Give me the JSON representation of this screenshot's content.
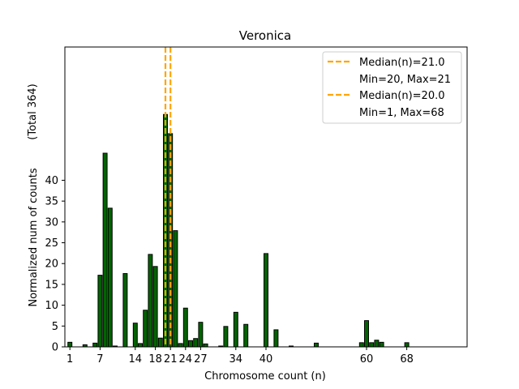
{
  "chart_data": {
    "type": "bar",
    "title": "Veronica",
    "xlabel": "Chromosome count (n)",
    "ylabel": "Normalized num of counts",
    "ylabel_total": "(Total 364)",
    "xlim": [
      0,
      80
    ],
    "ylim": [
      0,
      72
    ],
    "xticks": [
      1,
      7,
      14,
      18,
      21,
      24,
      27,
      34,
      40,
      60,
      68
    ],
    "yticks": [
      0,
      5,
      10,
      15,
      20,
      25,
      30,
      35,
      40
    ],
    "bar_color": "#006400",
    "bars": [
      {
        "x": 1,
        "y": 1.1
      },
      {
        "x": 4,
        "y": 0.5
      },
      {
        "x": 6,
        "y": 0.9
      },
      {
        "x": 7,
        "y": 17.2
      },
      {
        "x": 8,
        "y": 46.5
      },
      {
        "x": 9,
        "y": 33.3
      },
      {
        "x": 10,
        "y": 0.2
      },
      {
        "x": 12,
        "y": 17.6
      },
      {
        "x": 14,
        "y": 5.7
      },
      {
        "x": 15,
        "y": 0.8
      },
      {
        "x": 16,
        "y": 8.8
      },
      {
        "x": 17,
        "y": 22.2
      },
      {
        "x": 18,
        "y": 19.3
      },
      {
        "x": 19,
        "y": 2.1
      },
      {
        "x": 20,
        "y": 55.8
      },
      {
        "x": 21,
        "y": 51.2
      },
      {
        "x": 22,
        "y": 27.9
      },
      {
        "x": 23,
        "y": 0.8
      },
      {
        "x": 24,
        "y": 9.3
      },
      {
        "x": 25,
        "y": 1.5
      },
      {
        "x": 26,
        "y": 2.0
      },
      {
        "x": 27,
        "y": 5.9
      },
      {
        "x": 28,
        "y": 0.7
      },
      {
        "x": 31,
        "y": 0.2
      },
      {
        "x": 32,
        "y": 4.9
      },
      {
        "x": 34,
        "y": 8.3
      },
      {
        "x": 36,
        "y": 5.4
      },
      {
        "x": 40,
        "y": 22.4
      },
      {
        "x": 42,
        "y": 4.1
      },
      {
        "x": 45,
        "y": 0.2
      },
      {
        "x": 50,
        "y": 0.9
      },
      {
        "x": 59,
        "y": 1.0
      },
      {
        "x": 60,
        "y": 6.3
      },
      {
        "x": 61,
        "y": 1.0
      },
      {
        "x": 62,
        "y": 1.6
      },
      {
        "x": 63,
        "y": 1.1
      },
      {
        "x": 68,
        "y": 1.0
      }
    ],
    "median_lines": [
      {
        "x": 21.0,
        "color": "#FFA500"
      },
      {
        "x": 20.0,
        "color": "#FFA500"
      }
    ],
    "legend": {
      "position": "top-right",
      "entries": [
        {
          "label": "Median(n)=21.0",
          "line": true
        },
        {
          "label": "Min=20, Max=21",
          "line": false
        },
        {
          "label": "Median(n)=20.0",
          "line": true
        },
        {
          "label": "Min=1, Max=68",
          "line": false
        }
      ]
    }
  }
}
